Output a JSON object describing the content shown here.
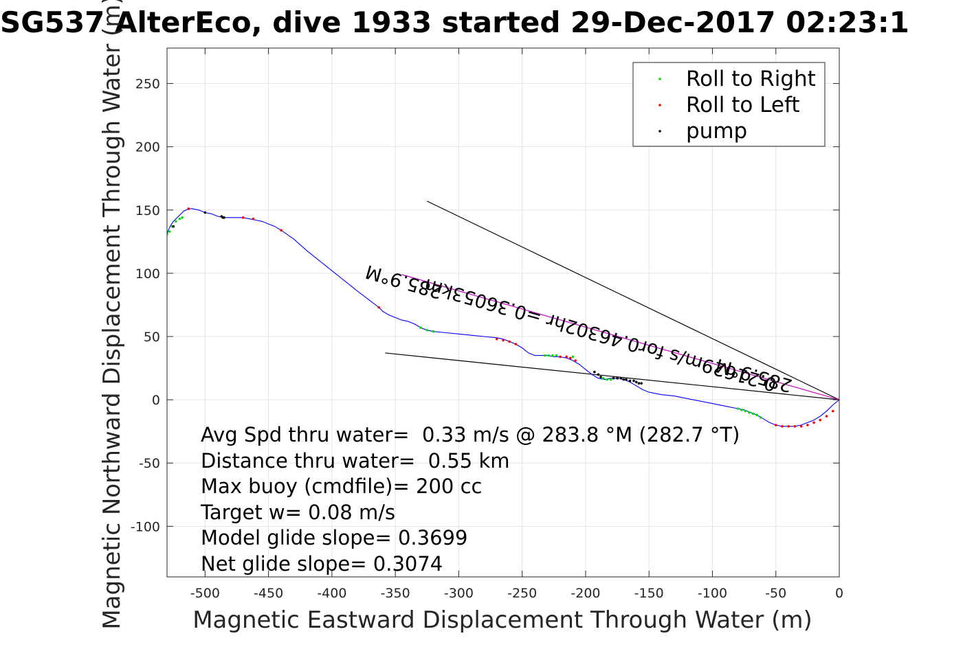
{
  "chart_data": {
    "type": "line",
    "title": "SG537 AlterEco, dive 1933 started 29-Dec-2017 02:23:1",
    "xlabel": "Magnetic Eastward Displacement Through Water (m)",
    "ylabel": "Magnetic Northward Displacement Through Water (m)",
    "xlim": [
      -530,
      0
    ],
    "ylim": [
      -140,
      278
    ],
    "grid": true,
    "legend_position": "top-right",
    "x_ticks": [
      -500,
      -450,
      -400,
      -350,
      -300,
      -250,
      -200,
      -150,
      -100,
      -50,
      0
    ],
    "y_ticks": [
      250,
      200,
      150,
      100,
      50,
      0,
      -50,
      -100
    ],
    "legend": [
      {
        "label": "Roll to Right",
        "color": "#00e000"
      },
      {
        "label": "Roll to Left",
        "color": "#ff0000"
      },
      {
        "label": "pump",
        "color": "#000000"
      }
    ],
    "track": {
      "name": "",
      "color": "#0000ff",
      "x": [
        0,
        -5,
        -10,
        -15,
        -20,
        -25,
        -30,
        -35,
        -40,
        -45,
        -50,
        -55,
        -60,
        -65,
        -70,
        -75,
        -80,
        -90,
        -100,
        -110,
        -120,
        -130,
        -140,
        -150,
        -155,
        -160,
        -165,
        -170,
        -175,
        -180,
        -185,
        -190,
        -195,
        -200,
        -205,
        -210,
        -215,
        -220,
        -225,
        -230,
        -235,
        -240,
        -245,
        -250,
        -255,
        -260,
        -265,
        -270,
        -280,
        -290,
        -300,
        -310,
        -320,
        -325,
        -330,
        -335,
        -340,
        -345,
        -350,
        -355,
        -360,
        -363,
        -380,
        -400,
        -420,
        -430,
        -440,
        -445,
        -450,
        -455,
        -460,
        -465,
        -470,
        -475,
        -480,
        -485,
        -490,
        -495,
        -500,
        -505,
        -510,
        -513,
        -517,
        -520,
        -523,
        -525,
        -527,
        -529,
        -530
      ],
      "y": [
        0,
        -4,
        -9,
        -13,
        -16,
        -18,
        -20,
        -21,
        -21,
        -21,
        -20,
        -18,
        -15,
        -12,
        -10,
        -8,
        -7,
        -5,
        -3,
        -1,
        1,
        3,
        4,
        6,
        8,
        11,
        14,
        16,
        17,
        17,
        16,
        17,
        20,
        24,
        28,
        31,
        33,
        34,
        34,
        35,
        35,
        35,
        37,
        41,
        44,
        46,
        48,
        49,
        50,
        51,
        52,
        53,
        54,
        55,
        57,
        60,
        62,
        63,
        65,
        67,
        70,
        73,
        86,
        102,
        118,
        127,
        134,
        137,
        139,
        141,
        142,
        143,
        144,
        144,
        144,
        144,
        145,
        147,
        148,
        150,
        151,
        151,
        149,
        146,
        143,
        141,
        138,
        134,
        131
      ]
    },
    "roll_right": {
      "x": [
        -530,
        -528,
        -526,
        -523,
        -520,
        -518,
        -330,
        -325,
        -320,
        -232,
        -229,
        -226,
        -223,
        -210,
        -186,
        -183,
        -180,
        -80,
        -77,
        -74,
        -71,
        -68,
        -65,
        -62
      ],
      "y": [
        131,
        133,
        137,
        141,
        143,
        144,
        57,
        55,
        54,
        35,
        35,
        35,
        35,
        34,
        17,
        16,
        16,
        -7,
        -8,
        -9,
        -10,
        -11,
        -12,
        -14
      ]
    },
    "roll_left": {
      "x": [
        -513,
        -470,
        -462,
        -440,
        -363,
        -270,
        -265,
        -260,
        -255,
        -220,
        -215,
        -212,
        -208,
        -50,
        -45,
        -40,
        -35,
        -30,
        -25,
        -20,
        -15,
        -10,
        -5,
        0
      ],
      "y": [
        151,
        144,
        143,
        134,
        73,
        48,
        47,
        46,
        44,
        34,
        34,
        33,
        31,
        -20,
        -21,
        -21,
        -21,
        -21,
        -20,
        -18,
        -16,
        -13,
        -9,
        0
      ]
    },
    "pump": {
      "x": [
        -525,
        -500,
        -487,
        -486,
        -485,
        -193,
        -190,
        -188,
        -178,
        -175,
        -172,
        -170,
        -168,
        -165,
        -162,
        -160,
        -158,
        -156
      ],
      "y": [
        137,
        148,
        145,
        144,
        144,
        22,
        20,
        18,
        17,
        17,
        17,
        16,
        16,
        15,
        15,
        14,
        13,
        13
      ]
    },
    "lines": [
      {
        "x": [
          -325,
          0
        ],
        "y": [
          157,
          0
        ],
        "color": "#000000"
      },
      {
        "x": [
          -358,
          0
        ],
        "y": [
          37,
          0
        ],
        "color": "#000000"
      },
      {
        "x": [
          -345,
          0
        ],
        "y": [
          99,
          0
        ],
        "color": "#cc00cc"
      }
    ],
    "line_labels": [
      {
        "text": "285.9°M",
        "x": -342,
        "y": 98,
        "angle": 196
      },
      {
        "text": "0.21629m/s for0.46302hr =0.36053km",
        "x": -187,
        "y": 56,
        "angle": 196
      },
      {
        "text": "285.9°M",
        "x": -66,
        "y": 24,
        "angle": 196
      }
    ],
    "annotations": [
      "Avg Spd thru water=  0.33 m/s @ 283.8 °M (282.7 °T)",
      "Distance thru water=  0.55 km",
      "Max buoy (cmdfile)= 200 cc",
      "Target w= 0.08 m/s",
      "Model glide slope= 0.3699",
      "Net glide slope= 0.3074"
    ]
  }
}
